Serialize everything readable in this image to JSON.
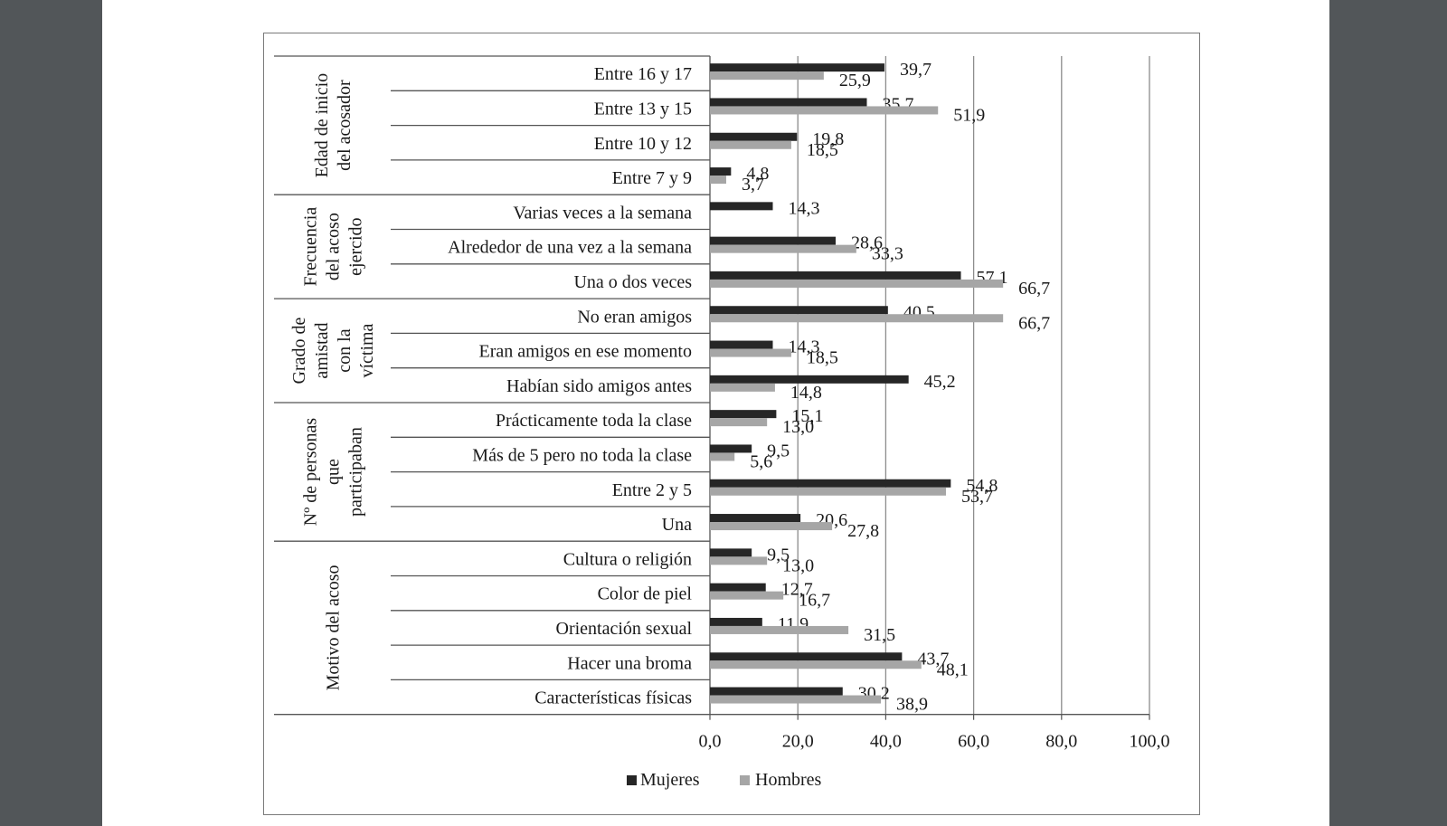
{
  "chart_data": {
    "type": "bar",
    "orientation": "horizontal",
    "groups": [
      {
        "label": "Edad de inicio del acosador",
        "label_lines": [
          "Edad de inicio",
          "del acosador"
        ],
        "categories": [
          "Entre 16 y 17",
          "Entre 13 y 15",
          "Entre 10 y 12",
          "Entre 7 y 9"
        ],
        "mujeres": [
          39.7,
          35.7,
          19.8,
          4.8
        ],
        "hombres": [
          25.9,
          51.9,
          18.5,
          3.7
        ],
        "mujeres_labels": [
          "39,7",
          "35,7",
          "19,8",
          "4,8"
        ],
        "hombres_labels": [
          "25,9",
          "51,9",
          "18,5",
          "3,7"
        ]
      },
      {
        "label": "Frecuencia del acoso ejercido",
        "label_lines": [
          "Frecuencia",
          "del acoso",
          "ejercido"
        ],
        "categories": [
          "Varias veces a la semana",
          "Alrededor de una vez a la semana",
          "Una o dos veces"
        ],
        "mujeres": [
          14.3,
          28.6,
          57.1
        ],
        "hombres": [
          null,
          33.3,
          66.7
        ],
        "mujeres_labels": [
          "14,3",
          "28,6",
          "57,1"
        ],
        "hombres_labels": [
          null,
          "33,3",
          "66,7"
        ]
      },
      {
        "label": "Grado de amistad con la víctima",
        "label_lines": [
          "Grado de",
          "amistad",
          "con la",
          "víctima"
        ],
        "categories": [
          "No eran amigos",
          "Eran amigos en ese momento",
          "Habían sido amigos antes"
        ],
        "mujeres": [
          40.5,
          14.3,
          45.2
        ],
        "hombres": [
          66.7,
          18.5,
          14.8
        ],
        "mujeres_labels": [
          "40,5",
          "14,3",
          "45,2"
        ],
        "hombres_labels": [
          "66,7",
          "18,5",
          "14,8"
        ]
      },
      {
        "label": "Nº de personas que participaban",
        "label_lines": [
          "Nº de personas",
          "que",
          "participaban"
        ],
        "categories": [
          "Prácticamente toda la clase",
          "Más de 5 pero no toda la clase",
          "Entre 2 y 5",
          "Una"
        ],
        "mujeres": [
          15.1,
          9.5,
          54.8,
          20.6
        ],
        "hombres": [
          13.0,
          5.6,
          53.7,
          27.8
        ],
        "mujeres_labels": [
          "15,1",
          "9,5",
          "54,8",
          "20,6"
        ],
        "hombres_labels": [
          "13,0",
          "5,6",
          "53,7",
          "27,8"
        ]
      },
      {
        "label": "Motivo del acoso",
        "label_lines": [
          "Motivo del acoso"
        ],
        "categories": [
          "Cultura o religión",
          "Color de piel",
          "Orientación sexual",
          "Hacer una broma",
          "Características físicas"
        ],
        "mujeres": [
          9.5,
          12.7,
          11.9,
          43.7,
          30.2
        ],
        "hombres": [
          13.0,
          16.7,
          31.5,
          48.1,
          38.9
        ],
        "mujeres_labels": [
          "9,5",
          "12,7",
          "11,9",
          "43,7",
          "30,2"
        ],
        "hombres_labels": [
          "13,0",
          "16,7",
          "31,5",
          "48,1",
          "38,9"
        ]
      }
    ],
    "series": [
      {
        "name": "Mujeres",
        "color": "#262626"
      },
      {
        "name": "Hombres",
        "color": "#a6a6a6"
      }
    ],
    "xlim": [
      0,
      100
    ],
    "xticks": [
      "0,0",
      "20,0",
      "40,0",
      "60,0",
      "80,0",
      "100,0"
    ],
    "grid": "vertical",
    "legend": "bottom"
  }
}
